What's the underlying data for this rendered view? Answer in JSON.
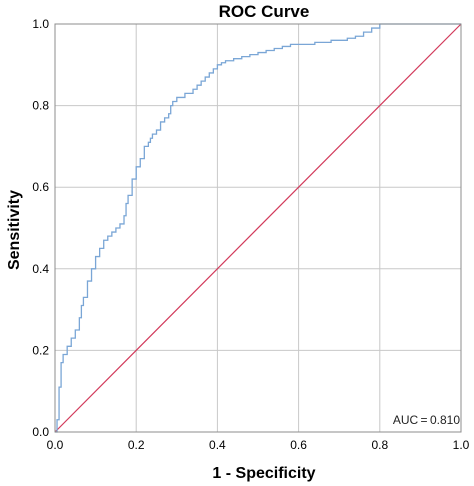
{
  "chart_data": {
    "type": "line",
    "title": "ROC Curve",
    "xlabel": "1 - Specificity",
    "ylabel": "Sensitivity",
    "xlim": [
      0,
      1
    ],
    "ylim": [
      0,
      1
    ],
    "x_ticks": [
      "0.0",
      "0.2",
      "0.4",
      "0.6",
      "0.8",
      "1.0"
    ],
    "y_ticks": [
      "0.0",
      "0.2",
      "0.4",
      "0.6",
      "0.8",
      "1.0"
    ],
    "grid": true,
    "annotation": "AUC = 0.810",
    "series": [
      {
        "color": "#7aa6d6",
        "step": true,
        "x": [
          0.0,
          0.005,
          0.01,
          0.015,
          0.02,
          0.03,
          0.04,
          0.05,
          0.06,
          0.065,
          0.07,
          0.08,
          0.09,
          0.1,
          0.11,
          0.12,
          0.13,
          0.14,
          0.15,
          0.16,
          0.17,
          0.175,
          0.18,
          0.19,
          0.2,
          0.21,
          0.22,
          0.23,
          0.235,
          0.24,
          0.25,
          0.26,
          0.27,
          0.28,
          0.285,
          0.29,
          0.3,
          0.32,
          0.34,
          0.35,
          0.36,
          0.37,
          0.38,
          0.39,
          0.4,
          0.41,
          0.42,
          0.44,
          0.46,
          0.48,
          0.5,
          0.52,
          0.54,
          0.56,
          0.58,
          0.6,
          0.62,
          0.64,
          0.66,
          0.68,
          0.7,
          0.72,
          0.74,
          0.76,
          0.78,
          0.8,
          0.82,
          0.84,
          1.0
        ],
        "y": [
          0.0,
          0.03,
          0.11,
          0.17,
          0.19,
          0.21,
          0.23,
          0.25,
          0.28,
          0.31,
          0.33,
          0.37,
          0.4,
          0.43,
          0.45,
          0.47,
          0.48,
          0.49,
          0.5,
          0.51,
          0.53,
          0.56,
          0.58,
          0.62,
          0.65,
          0.67,
          0.7,
          0.71,
          0.72,
          0.73,
          0.74,
          0.76,
          0.77,
          0.78,
          0.8,
          0.81,
          0.82,
          0.83,
          0.84,
          0.85,
          0.86,
          0.87,
          0.88,
          0.89,
          0.9,
          0.905,
          0.91,
          0.915,
          0.92,
          0.925,
          0.93,
          0.935,
          0.94,
          0.945,
          0.95,
          0.95,
          0.95,
          0.955,
          0.955,
          0.96,
          0.96,
          0.965,
          0.97,
          0.98,
          0.99,
          1.0,
          1.0,
          1.0,
          1.0
        ]
      },
      {
        "color": "#d23a5b",
        "x": [
          0,
          1
        ],
        "y": [
          0,
          1
        ]
      }
    ]
  }
}
